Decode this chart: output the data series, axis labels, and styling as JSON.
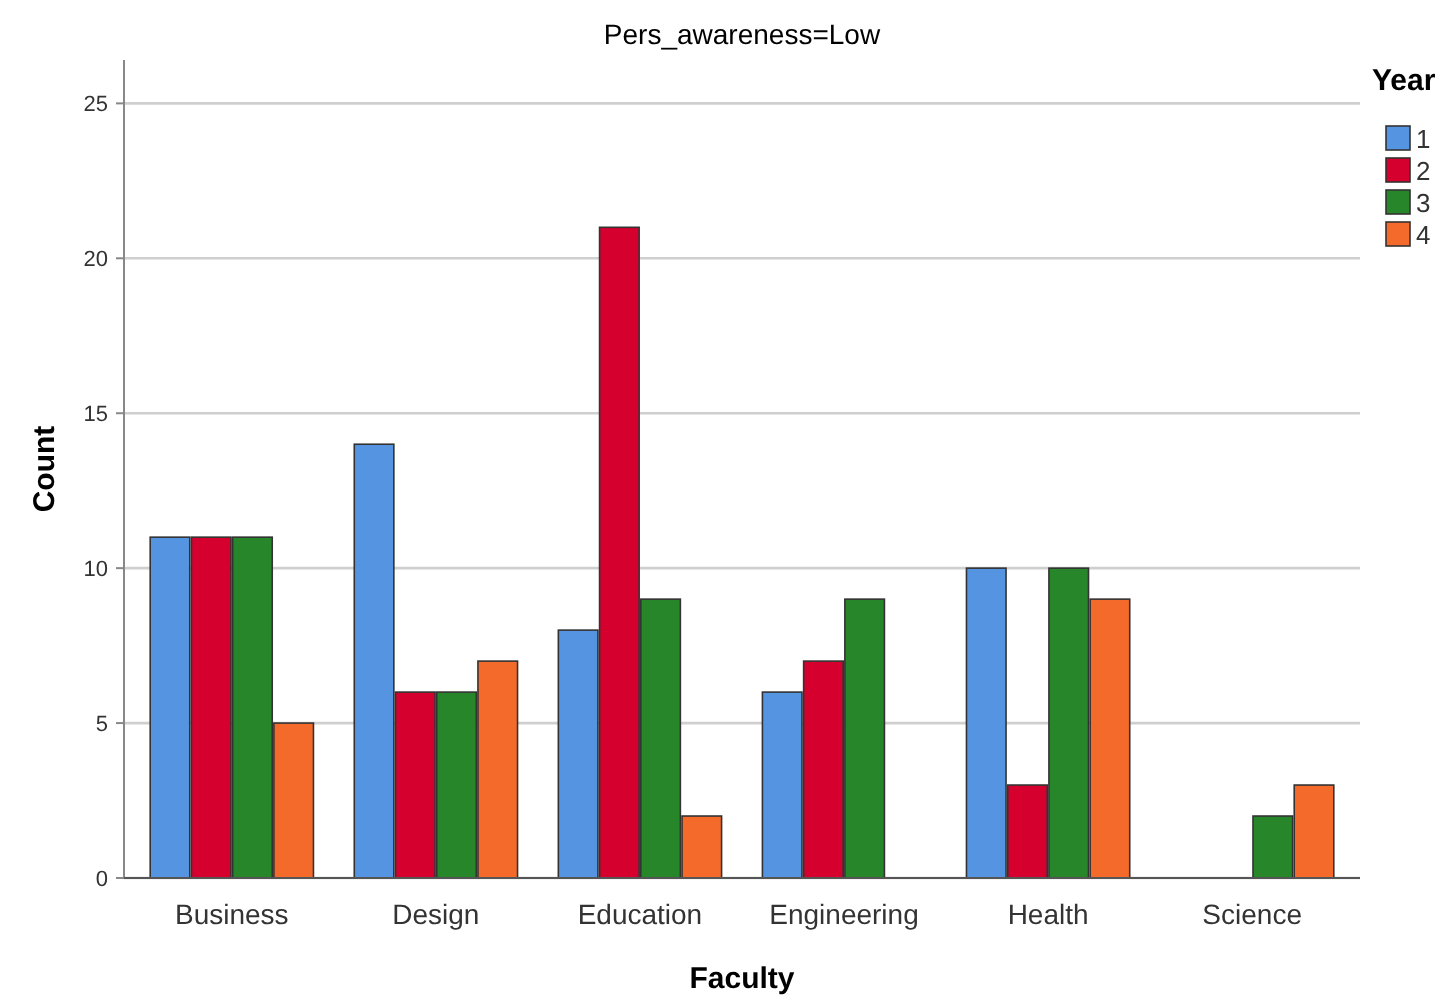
{
  "chart_data": {
    "type": "bar",
    "title": "Pers_awareness=Low",
    "xlabel": "Faculty",
    "ylabel": "Count",
    "legend_title": "Year",
    "categories": [
      "Business",
      "Design",
      "Education",
      "Engineering",
      "Health",
      "Science"
    ],
    "series": [
      {
        "name": "1",
        "color": "#5594e0",
        "values": [
          11,
          14,
          8,
          6,
          10,
          null
        ]
      },
      {
        "name": "2",
        "color": "#d6002f",
        "values": [
          11,
          6,
          21,
          7,
          3,
          null
        ]
      },
      {
        "name": "3",
        "color": "#28862a",
        "values": [
          11,
          6,
          9,
          9,
          10,
          2
        ]
      },
      {
        "name": "4",
        "color": "#f46a2b",
        "values": [
          5,
          7,
          2,
          null,
          9,
          3
        ]
      }
    ],
    "ylim": [
      0,
      26.4
    ],
    "yticks": [
      0,
      5,
      10,
      15,
      20,
      25
    ],
    "grid": "y",
    "legend": "top right"
  }
}
